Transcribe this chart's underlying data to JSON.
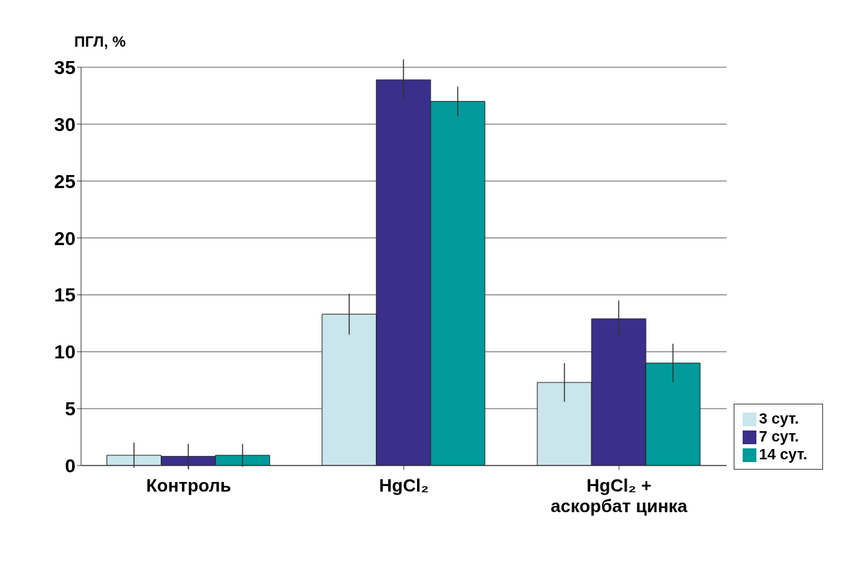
{
  "chart_data": {
    "type": "bar",
    "ylabel": "ПГЛ, %",
    "categories": [
      "Контроль",
      "HgCl₂",
      "HgCl₂ + аскорбат цинка"
    ],
    "series": [
      {
        "name": "3 сут.",
        "color": "#c9e6ec",
        "values": [
          0.9,
          13.3,
          7.3
        ],
        "errors": [
          1.1,
          1.8,
          1.7
        ]
      },
      {
        "name": "7 сут.",
        "color": "#3a2f8a",
        "values": [
          0.8,
          33.9,
          12.9
        ],
        "errors": [
          1.1,
          1.8,
          1.6
        ]
      },
      {
        "name": "14 сут.",
        "color": "#009a9a",
        "values": [
          0.9,
          32.0,
          9.0
        ],
        "errors": [
          1.0,
          1.3,
          1.7
        ]
      }
    ],
    "ylim": [
      0,
      35
    ],
    "yticks": [
      0,
      5,
      10,
      15,
      20,
      25,
      30,
      35
    ],
    "grid": "y",
    "legend": "right"
  }
}
